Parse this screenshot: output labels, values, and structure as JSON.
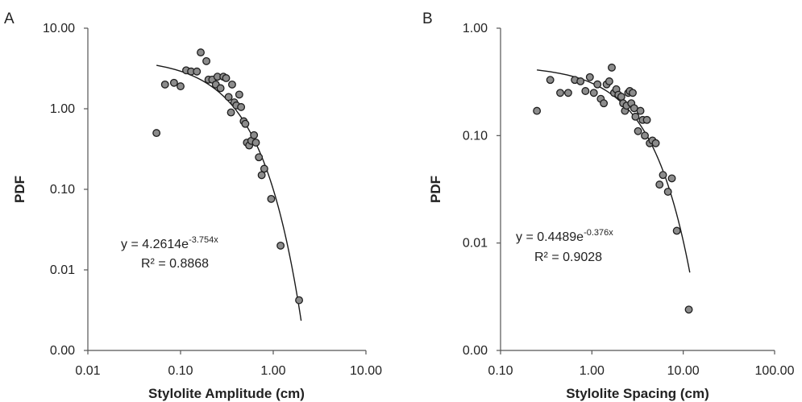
{
  "chart_data": [
    {
      "type": "scatter",
      "panel_label": "A",
      "xlabel": "Stylolite Amplitude (cm)",
      "ylabel": "PDF",
      "x_scale": "log",
      "y_scale": "log",
      "xlim": [
        0.01,
        10
      ],
      "ylim": [
        0.001,
        10
      ],
      "x_ticks": [
        0.01,
        0.1,
        1,
        10
      ],
      "x_tick_labels": [
        "0.01",
        "0.10",
        "1.00",
        "10.00"
      ],
      "y_ticks": [
        0.001,
        0.01,
        0.1,
        1,
        10
      ],
      "y_tick_labels": [
        "0.00",
        "0.01",
        "0.10",
        "1.00",
        "10.00"
      ],
      "grid": false,
      "points": [
        {
          "x": 0.055,
          "y": 0.5
        },
        {
          "x": 0.068,
          "y": 2.0
        },
        {
          "x": 0.085,
          "y": 2.1
        },
        {
          "x": 0.1,
          "y": 1.9
        },
        {
          "x": 0.115,
          "y": 3.0
        },
        {
          "x": 0.13,
          "y": 2.9
        },
        {
          "x": 0.15,
          "y": 2.9
        },
        {
          "x": 0.165,
          "y": 5.0
        },
        {
          "x": 0.19,
          "y": 3.9
        },
        {
          "x": 0.2,
          "y": 2.3
        },
        {
          "x": 0.22,
          "y": 2.3
        },
        {
          "x": 0.24,
          "y": 2.0
        },
        {
          "x": 0.25,
          "y": 2.5
        },
        {
          "x": 0.27,
          "y": 1.8
        },
        {
          "x": 0.29,
          "y": 2.5
        },
        {
          "x": 0.31,
          "y": 2.4
        },
        {
          "x": 0.33,
          "y": 1.4
        },
        {
          "x": 0.35,
          "y": 0.9
        },
        {
          "x": 0.36,
          "y": 2.0
        },
        {
          "x": 0.38,
          "y": 1.2
        },
        {
          "x": 0.4,
          "y": 1.1
        },
        {
          "x": 0.43,
          "y": 1.5
        },
        {
          "x": 0.45,
          "y": 1.05
        },
        {
          "x": 0.48,
          "y": 0.7
        },
        {
          "x": 0.5,
          "y": 0.65
        },
        {
          "x": 0.52,
          "y": 0.38
        },
        {
          "x": 0.55,
          "y": 0.35
        },
        {
          "x": 0.58,
          "y": 0.4
        },
        {
          "x": 0.62,
          "y": 0.47
        },
        {
          "x": 0.65,
          "y": 0.38
        },
        {
          "x": 0.7,
          "y": 0.25
        },
        {
          "x": 0.75,
          "y": 0.15
        },
        {
          "x": 0.8,
          "y": 0.18
        },
        {
          "x": 0.95,
          "y": 0.076
        },
        {
          "x": 1.2,
          "y": 0.02
        },
        {
          "x": 1.9,
          "y": 0.0042
        }
      ],
      "trendline": {
        "type": "exponential",
        "a": 4.2614,
        "b": -3.754,
        "x_range": [
          0.055,
          2.0
        ]
      },
      "equation": {
        "main": "y = 4.2614e",
        "exp": "-3.754x"
      },
      "r2_label": "R² = 0.8868"
    },
    {
      "type": "scatter",
      "panel_label": "B",
      "xlabel": "Stylolite Spacing (cm)",
      "ylabel": "PDF",
      "x_scale": "log",
      "y_scale": "log",
      "xlim": [
        0.1,
        100
      ],
      "ylim": [
        0.001,
        1
      ],
      "x_ticks": [
        0.1,
        1,
        10,
        100
      ],
      "x_tick_labels": [
        "0.10",
        "1.00",
        "10.00",
        "100.00"
      ],
      "y_ticks": [
        0.001,
        0.01,
        0.1,
        1
      ],
      "y_tick_labels": [
        "0.00",
        "0.01",
        "0.10",
        "1.00"
      ],
      "grid": false,
      "points": [
        {
          "x": 0.25,
          "y": 0.17
        },
        {
          "x": 0.35,
          "y": 0.33
        },
        {
          "x": 0.45,
          "y": 0.25
        },
        {
          "x": 0.55,
          "y": 0.25
        },
        {
          "x": 0.65,
          "y": 0.33
        },
        {
          "x": 0.75,
          "y": 0.32
        },
        {
          "x": 0.85,
          "y": 0.26
        },
        {
          "x": 0.95,
          "y": 0.35
        },
        {
          "x": 1.05,
          "y": 0.25
        },
        {
          "x": 1.15,
          "y": 0.3
        },
        {
          "x": 1.25,
          "y": 0.22
        },
        {
          "x": 1.35,
          "y": 0.2
        },
        {
          "x": 1.45,
          "y": 0.3
        },
        {
          "x": 1.55,
          "y": 0.32
        },
        {
          "x": 1.65,
          "y": 0.43
        },
        {
          "x": 1.75,
          "y": 0.25
        },
        {
          "x": 1.85,
          "y": 0.27
        },
        {
          "x": 1.95,
          "y": 0.24
        },
        {
          "x": 2.1,
          "y": 0.23
        },
        {
          "x": 2.2,
          "y": 0.2
        },
        {
          "x": 2.3,
          "y": 0.17
        },
        {
          "x": 2.4,
          "y": 0.19
        },
        {
          "x": 2.5,
          "y": 0.25
        },
        {
          "x": 2.6,
          "y": 0.26
        },
        {
          "x": 2.7,
          "y": 0.2
        },
        {
          "x": 2.8,
          "y": 0.25
        },
        {
          "x": 2.9,
          "y": 0.18
        },
        {
          "x": 3.0,
          "y": 0.15
        },
        {
          "x": 3.2,
          "y": 0.11
        },
        {
          "x": 3.4,
          "y": 0.17
        },
        {
          "x": 3.6,
          "y": 0.14
        },
        {
          "x": 3.8,
          "y": 0.1
        },
        {
          "x": 4.0,
          "y": 0.14
        },
        {
          "x": 4.3,
          "y": 0.085
        },
        {
          "x": 4.6,
          "y": 0.09
        },
        {
          "x": 5.0,
          "y": 0.085
        },
        {
          "x": 5.5,
          "y": 0.035
        },
        {
          "x": 6.0,
          "y": 0.043
        },
        {
          "x": 6.8,
          "y": 0.03
        },
        {
          "x": 7.5,
          "y": 0.04
        },
        {
          "x": 8.5,
          "y": 0.013
        },
        {
          "x": 11.5,
          "y": 0.0024
        }
      ],
      "trendline": {
        "type": "exponential",
        "a": 0.4489,
        "b": -0.376,
        "x_range": [
          0.25,
          11.8
        ]
      },
      "equation": {
        "main": "y = 0.4489e",
        "exp": "-0.376x"
      },
      "r2_label": "R² = 0.9028"
    }
  ]
}
